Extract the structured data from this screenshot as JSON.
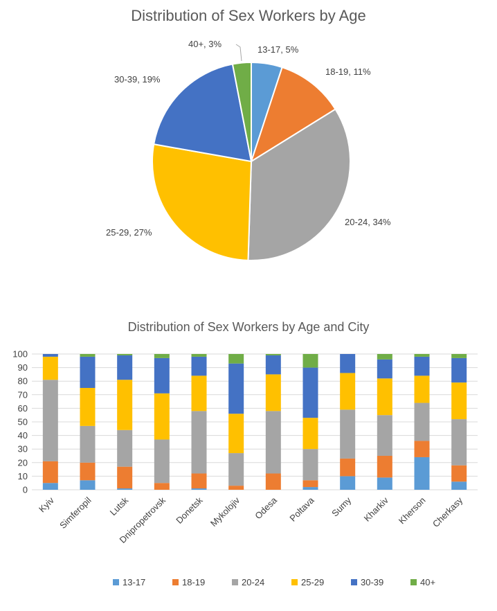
{
  "chart_data": [
    {
      "type": "pie",
      "title": "Distribution of Sex Workers by Age",
      "categories": [
        "13-17",
        "18-19",
        "20-24",
        "25-29",
        "30-39",
        "40+"
      ],
      "values": [
        5,
        11,
        34,
        27,
        19,
        3
      ],
      "data_labels": [
        "13-17, 5%",
        "18-19, 11%",
        "20-24, 34%",
        "25-29, 27%",
        "30-39, 19%",
        "40+, 3%"
      ],
      "colors": [
        "#5b9bd5",
        "#ed7d31",
        "#a5a5a5",
        "#ffc000",
        "#4472c4",
        "#70ad47"
      ]
    },
    {
      "type": "bar",
      "stacked": true,
      "title": "Distribution of Sex Workers  by Age and City",
      "categories": [
        "Kyiv",
        "Simferopil",
        "Lutsk",
        "Dnipropetrovsk",
        "Donetsk",
        "Mykolojiv",
        "Odesa",
        "Poltava",
        "Sumy",
        "Kharkiv",
        "Kherson",
        "Cherkasy"
      ],
      "ylim": [
        0,
        100
      ],
      "yticks": [
        0,
        10,
        20,
        30,
        40,
        50,
        60,
        70,
        80,
        90,
        100
      ],
      "legend_position": "bottom",
      "series": [
        {
          "name": "13-17",
          "color": "#5b9bd5",
          "values": [
            5,
            7,
            1,
            0,
            1,
            0,
            0,
            2,
            10,
            9,
            24,
            6
          ]
        },
        {
          "name": "18-19",
          "color": "#ed7d31",
          "values": [
            16,
            13,
            16,
            5,
            11,
            3,
            12,
            5,
            13,
            16,
            12,
            12
          ]
        },
        {
          "name": "20-24",
          "color": "#a5a5a5",
          "values": [
            60,
            27,
            27,
            32,
            46,
            24,
            46,
            23,
            36,
            30,
            28,
            34
          ]
        },
        {
          "name": "25-29",
          "color": "#ffc000",
          "values": [
            17,
            28,
            37,
            34,
            26,
            29,
            27,
            23,
            27,
            27,
            20,
            27
          ]
        },
        {
          "name": "30-39",
          "color": "#4472c4",
          "values": [
            2,
            23,
            18,
            26,
            14,
            37,
            14,
            37,
            14,
            14,
            14,
            18
          ]
        },
        {
          "name": "40+",
          "color": "#70ad47",
          "values": [
            0,
            2,
            1,
            3,
            2,
            7,
            1,
            10,
            0,
            4,
            2,
            3
          ]
        }
      ]
    }
  ]
}
